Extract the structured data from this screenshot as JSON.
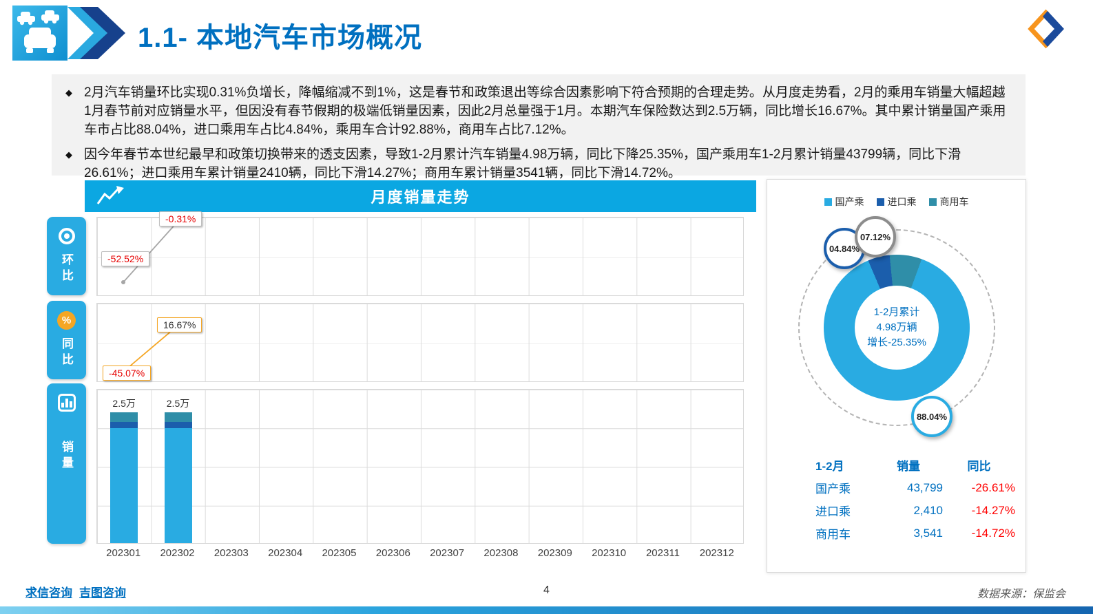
{
  "header": {
    "title": "1.1- 本地汽车市场概况"
  },
  "bullets": [
    "2月汽车销量环比实现0.31%负增长，降幅缩减不到1%，这是春节和政策退出等综合因素影响下符合预期的合理走势。从月度走势看，2月的乘用车销量大幅超越1月春节前对应销量水平，但因没有春节假期的极端低销量因素，因此2月总量强于1月。本期汽车保险数达到2.5万辆，同比增长16.67%。其中累计销量国产乘用车市占比88.04%，进口乘用车占比4.84%，乘用车合计92.88%，商用车占比7.12%。",
    "因今年春节本世纪最早和政策切换带来的透支因素，导致1-2月累计汽车销量4.98万辆，同比下降25.35%，国产乘用车1-2月累计销量43799辆，同比下滑26.61%；进口乘用车累计销量2410辆，同比下滑14.27%；商用车累计销量3541辆，同比下滑14.72%。"
  ],
  "trend_section": {
    "title": "月度销量走势",
    "tabs": [
      {
        "label": "环比"
      },
      {
        "label": "同比"
      },
      {
        "label": "销量"
      }
    ],
    "months": [
      "202301",
      "202302",
      "202303",
      "202304",
      "202305",
      "202306",
      "202307",
      "202308",
      "202309",
      "202310",
      "202311",
      "202312"
    ]
  },
  "chart_data": [
    {
      "type": "line",
      "name": "环比",
      "x": [
        "202301",
        "202302"
      ],
      "values": [
        -52.52,
        -0.31
      ],
      "labels": [
        "-52.52%",
        "-0.31%"
      ],
      "color": "#a6a6a6",
      "ylim": [
        -60,
        0
      ],
      "grid": true
    },
    {
      "type": "line",
      "name": "同比",
      "x": [
        "202301",
        "202302"
      ],
      "values": [
        -45.07,
        16.67
      ],
      "labels": [
        "-45.07%",
        "16.67%"
      ],
      "color": "#f5a623",
      "ylim": [
        -60,
        30
      ],
      "grid": true
    },
    {
      "type": "bar",
      "name": "销量（万辆）",
      "x": [
        "202301",
        "202302"
      ],
      "values": [
        2.5,
        2.5
      ],
      "labels": [
        "2.5万",
        "2.5万"
      ],
      "series": [
        {
          "name": "国产乘",
          "pct": 88.04,
          "color": "#29abe2"
        },
        {
          "name": "进口乘",
          "pct": 4.84,
          "color": "#1b5eac"
        },
        {
          "name": "商用车",
          "pct": 7.12,
          "color": "#2f8ea8"
        }
      ],
      "xlabel": "",
      "ylabel": "",
      "grid": true
    },
    {
      "type": "pie",
      "name": "1-2月累计销量占比",
      "slices": [
        {
          "label": "国产乘",
          "value": 88.04,
          "badge": "88.04%",
          "color": "#29abe2"
        },
        {
          "label": "进口乘",
          "value": 4.84,
          "badge": "04.84%",
          "color": "#1b5eac"
        },
        {
          "label": "商用车",
          "value": 7.12,
          "badge": "07.12%",
          "color": "#2f8ea8"
        }
      ],
      "center": [
        "1-2月累计",
        "4.98万辆",
        "增长-25.35%"
      ],
      "legend_position": "top"
    }
  ],
  "summary_table": {
    "headers": [
      "1-2月",
      "销量",
      "同比"
    ],
    "rows": [
      {
        "name": "国产乘",
        "sales": "43,799",
        "yoy": "-26.61%"
      },
      {
        "name": "进口乘",
        "sales": "2,410",
        "yoy": "-14.27%"
      },
      {
        "name": "商用车",
        "sales": "3,541",
        "yoy": "-14.72%"
      }
    ]
  },
  "footer": {
    "links": [
      "求信咨询",
      "吉图咨询"
    ],
    "page": "4",
    "right": "数据来源：保监会"
  },
  "icons": {
    "percent": "%",
    "bullet": "◆"
  },
  "colors": {
    "accent_cyan": "#29abe2",
    "header_cyan": "#0ba7e2",
    "title_blue": "#0070c0",
    "import_blue": "#1b5eac",
    "commercial_teal": "#2f8ea8",
    "orange": "#f5a623",
    "negative_red": "#ff0000",
    "badge_ring_gray": "#8c8c8c"
  }
}
